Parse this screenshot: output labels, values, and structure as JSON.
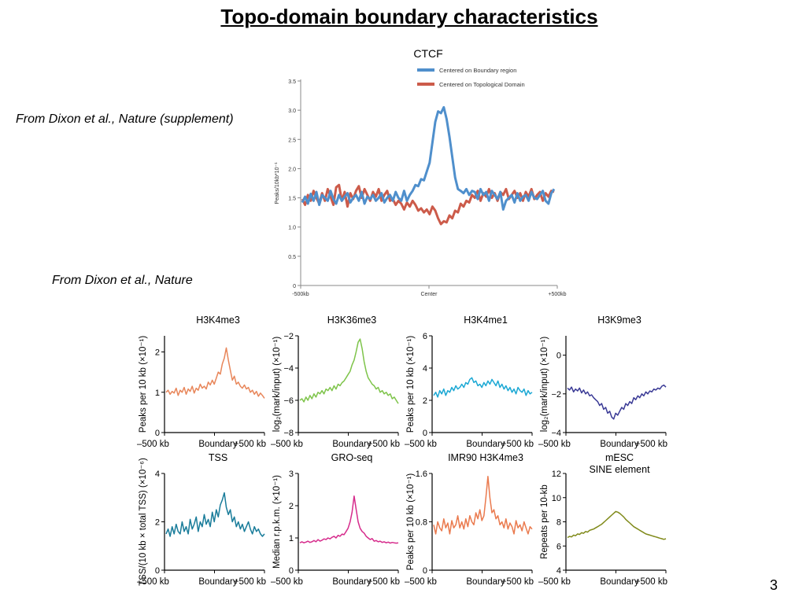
{
  "slide": {
    "title": "Topo-domain boundary characteristics",
    "caption_top": "From Dixon et al., Nature (supplement)",
    "caption_bottom": "From Dixon et al., Nature",
    "slide_number": "3"
  },
  "chart_data": [
    {
      "id": "ctcf",
      "type": "line",
      "title": "CTCF",
      "ylabel": "Peaks/10kb*10⁻¹",
      "ylim": [
        0,
        3.5
      ],
      "yticks": [
        0,
        0.5,
        1.0,
        1.5,
        2.0,
        2.5,
        3.0,
        3.5
      ],
      "ytick_labels": [
        "0",
        "0.5",
        "1.0",
        "1.5",
        "2.0",
        "2.5",
        "3.0",
        "3.5"
      ],
      "xtick_labels": [
        "-500kb",
        "Center",
        "+500kb"
      ],
      "legend_position": "top-right",
      "series": [
        {
          "name": "Centered on Boundary region",
          "color": "#4f8fcc",
          "values": [
            1.42,
            1.52,
            1.4,
            1.57,
            1.45,
            1.6,
            1.38,
            1.55,
            1.5,
            1.45,
            1.62,
            1.48,
            1.4,
            1.55,
            1.45,
            1.52,
            1.58,
            1.42,
            1.5,
            1.55,
            1.45,
            1.6,
            1.4,
            1.52,
            1.48,
            1.55,
            1.45,
            1.5,
            1.58,
            1.42,
            1.5,
            1.55,
            1.45,
            1.6,
            1.5,
            1.45,
            1.62,
            1.45,
            1.55,
            1.62,
            1.72,
            1.7,
            1.82,
            1.8,
            1.95,
            2.1,
            2.45,
            2.8,
            2.98,
            2.95,
            3.05,
            2.85,
            2.55,
            2.2,
            1.85,
            1.65,
            1.62,
            1.58,
            1.65,
            1.55,
            1.62,
            1.6,
            1.48,
            1.65,
            1.55,
            1.6,
            1.45,
            1.62,
            1.55,
            1.48,
            1.6,
            1.3,
            1.45,
            1.5,
            1.55,
            1.42,
            1.58,
            1.45,
            1.52,
            1.55,
            1.45,
            1.6,
            1.5,
            1.48,
            1.55,
            1.62,
            1.45,
            1.4,
            1.58,
            1.65
          ]
        },
        {
          "name": "Centered on Topological Domain",
          "color": "#cc5b4a",
          "values": [
            1.48,
            1.38,
            1.55,
            1.45,
            1.62,
            1.5,
            1.4,
            1.58,
            1.45,
            1.65,
            1.52,
            1.38,
            1.68,
            1.72,
            1.45,
            1.6,
            1.35,
            1.58,
            1.48,
            1.62,
            1.7,
            1.5,
            1.65,
            1.55,
            1.45,
            1.6,
            1.52,
            1.65,
            1.45,
            1.55,
            1.62,
            1.45,
            1.48,
            1.38,
            1.45,
            1.4,
            1.3,
            1.42,
            1.35,
            1.45,
            1.38,
            1.28,
            1.32,
            1.25,
            1.3,
            1.22,
            1.35,
            1.28,
            1.15,
            1.05,
            1.1,
            1.08,
            1.2,
            1.15,
            1.28,
            1.25,
            1.4,
            1.35,
            1.45,
            1.42,
            1.55,
            1.5,
            1.62,
            1.45,
            1.58,
            1.52,
            1.65,
            1.5,
            1.58,
            1.45,
            1.6,
            1.55,
            1.65,
            1.48,
            1.55,
            1.62,
            1.5,
            1.58,
            1.45,
            1.6,
            1.52,
            1.65,
            1.48,
            1.55,
            1.6,
            1.45,
            1.58,
            1.52,
            1.62,
            1.6
          ]
        }
      ]
    },
    {
      "id": "h3k4me3",
      "type": "line",
      "title": "H3K4me3",
      "ylabel": "Peaks per 10 kb (×10⁻¹)",
      "ylim": [
        0,
        2.4
      ],
      "yticks": [
        0,
        1,
        2
      ],
      "ytick_labels": [
        "0",
        "1",
        "2"
      ],
      "xtick_labels": [
        "–500 kb",
        "Boundary",
        "+500 kb"
      ],
      "color": "#e8865a",
      "series": [
        {
          "values": [
            1.0,
            1.05,
            0.95,
            1.02,
            0.98,
            1.1,
            0.92,
            1.05,
            1.0,
            1.12,
            0.95,
            1.08,
            1.02,
            1.15,
            0.98,
            1.1,
            1.05,
            1.2,
            1.1,
            1.15,
            1.08,
            1.25,
            1.18,
            1.3,
            1.2,
            1.35,
            1.5,
            1.45,
            1.7,
            1.85,
            2.1,
            1.8,
            1.55,
            1.3,
            1.4,
            1.2,
            1.25,
            1.15,
            1.1,
            1.18,
            1.08,
            1.12,
            1.0,
            1.05,
            0.95,
            1.02,
            0.9,
            0.98,
            0.92,
            0.85
          ]
        }
      ]
    },
    {
      "id": "h3k36me3",
      "type": "line",
      "title": "H3K36me3",
      "ylabel": "log₂(mark/input) (×10⁻¹)",
      "ylim": [
        -8,
        -2
      ],
      "yticks": [
        -8,
        -6,
        -4,
        -2
      ],
      "ytick_labels": [
        "−8",
        "−6",
        "−4",
        "−2"
      ],
      "xtick_labels": [
        "–500 kb",
        "Boundary",
        "+500 kb"
      ],
      "color": "#7ec44a",
      "series": [
        {
          "values": [
            -6.0,
            -5.9,
            -6.1,
            -5.8,
            -6.0,
            -5.7,
            -5.9,
            -5.6,
            -5.8,
            -5.5,
            -5.6,
            -5.4,
            -5.6,
            -5.3,
            -5.4,
            -5.2,
            -5.4,
            -5.1,
            -5.3,
            -5.0,
            -5.1,
            -4.9,
            -4.8,
            -4.6,
            -4.4,
            -4.2,
            -3.8,
            -3.5,
            -3.0,
            -2.4,
            -2.2,
            -2.8,
            -3.6,
            -4.2,
            -4.6,
            -4.8,
            -5.0,
            -5.1,
            -5.3,
            -5.2,
            -5.5,
            -5.4,
            -5.6,
            -5.5,
            -5.7,
            -5.6,
            -5.9,
            -5.8,
            -6.0,
            -6.2
          ]
        }
      ]
    },
    {
      "id": "h3k4me1",
      "type": "line",
      "title": "H3K4me1",
      "ylabel": "Peaks per 10 kb (×10⁻¹)",
      "ylim": [
        0,
        6
      ],
      "yticks": [
        0,
        2,
        4,
        6
      ],
      "ytick_labels": [
        "0",
        "2",
        "4",
        "6"
      ],
      "xtick_labels": [
        "–500 kb",
        "Boundary",
        "+500 kb"
      ],
      "color": "#1ba8d4",
      "series": [
        {
          "values": [
            2.3,
            2.5,
            2.2,
            2.6,
            2.4,
            2.7,
            2.3,
            2.6,
            2.5,
            2.8,
            2.6,
            2.9,
            2.7,
            2.8,
            3.0,
            2.8,
            3.1,
            3.0,
            3.3,
            3.4,
            3.1,
            3.2,
            2.9,
            3.0,
            2.8,
            3.1,
            2.9,
            3.2,
            3.0,
            3.3,
            3.1,
            2.9,
            3.2,
            2.8,
            3.0,
            2.7,
            2.9,
            2.6,
            2.8,
            2.5,
            2.7,
            2.4,
            2.8,
            2.6,
            2.5,
            2.7,
            2.3,
            2.6,
            2.4,
            2.5
          ]
        }
      ]
    },
    {
      "id": "h3k9me3",
      "type": "line",
      "title": "H3K9me3",
      "ylabel": "log₂(mark/input) (×10⁻¹)",
      "ylim": [
        -4,
        1
      ],
      "yticks": [
        -4,
        -2,
        0
      ],
      "ytick_labels": [
        "−4",
        "−2",
        "0"
      ],
      "xtick_labels": [
        "–500 kb",
        "Boundary",
        "+500 kb"
      ],
      "color": "#3b3b96",
      "series": [
        {
          "values": [
            -1.7,
            -1.8,
            -1.65,
            -1.9,
            -1.75,
            -1.85,
            -1.7,
            -1.95,
            -1.8,
            -2.0,
            -1.9,
            -2.1,
            -2.05,
            -2.2,
            -2.3,
            -2.4,
            -2.6,
            -2.5,
            -2.8,
            -2.7,
            -3.0,
            -2.9,
            -3.2,
            -3.3,
            -3.0,
            -3.1,
            -2.9,
            -2.7,
            -2.8,
            -2.5,
            -2.6,
            -2.4,
            -2.5,
            -2.2,
            -2.3,
            -2.1,
            -2.2,
            -2.0,
            -2.1,
            -1.9,
            -2.0,
            -1.85,
            -1.9,
            -1.75,
            -1.8,
            -1.7,
            -1.75,
            -1.6,
            -1.55,
            -1.65
          ]
        }
      ]
    },
    {
      "id": "tss",
      "type": "line",
      "title": "TSS",
      "ylabel": "TSS/(10 kb × total TSS) (×10⁻⁶)",
      "ylim": [
        0,
        4
      ],
      "yticks": [
        0,
        2,
        4
      ],
      "ytick_labels": [
        "0",
        "2",
        "4"
      ],
      "xtick_labels": [
        "–500 kb",
        "Boundary",
        "+500 kb"
      ],
      "color": "#197c9a",
      "series": [
        {
          "values": [
            1.5,
            1.7,
            1.4,
            1.8,
            1.5,
            1.9,
            1.6,
            1.5,
            2.0,
            1.6,
            1.8,
            1.5,
            2.1,
            1.7,
            1.9,
            2.2,
            1.6,
            2.0,
            1.8,
            2.3,
            1.9,
            2.1,
            1.8,
            2.4,
            2.0,
            2.5,
            2.2,
            2.7,
            2.9,
            3.2,
            2.6,
            2.3,
            2.5,
            2.0,
            2.2,
            1.8,
            2.0,
            1.7,
            1.9,
            1.6,
            1.8,
            2.0,
            1.7,
            1.5,
            1.8,
            1.6,
            1.7,
            1.5,
            1.4,
            1.5
          ]
        }
      ]
    },
    {
      "id": "groseq",
      "type": "line",
      "title": "GRO-seq",
      "ylabel": "Median r.p.k.m. (×10⁻¹)",
      "ylim": [
        0,
        3
      ],
      "yticks": [
        0,
        1,
        2,
        3
      ],
      "ytick_labels": [
        "0",
        "1",
        "2",
        "3"
      ],
      "xtick_labels": [
        "–500 kb",
        "Boundary",
        "+500 kb"
      ],
      "color": "#d62c8c",
      "series": [
        {
          "values": [
            0.85,
            0.88,
            0.85,
            0.87,
            0.9,
            0.86,
            0.88,
            0.92,
            0.88,
            0.95,
            0.9,
            0.93,
            0.97,
            0.95,
            1.0,
            0.97,
            1.02,
            1.05,
            1.0,
            1.08,
            1.05,
            1.12,
            1.1,
            1.2,
            1.3,
            1.5,
            1.8,
            2.3,
            1.9,
            1.5,
            1.3,
            1.2,
            1.15,
            1.05,
            1.0,
            0.95,
            0.98,
            0.9,
            0.92,
            0.88,
            0.9,
            0.86,
            0.88,
            0.85,
            0.87,
            0.84,
            0.86,
            0.85,
            0.84,
            0.85
          ]
        }
      ]
    },
    {
      "id": "imr90",
      "type": "line",
      "title": "IMR90 H3K4me3",
      "ylabel": "Peaks per 10 kb (×10⁻¹)",
      "ylim": [
        0,
        1.6
      ],
      "yticks": [
        0,
        0.8,
        1.6
      ],
      "ytick_labels": [
        "0",
        "0.8",
        "1.6"
      ],
      "xtick_labels": [
        "–500 kb",
        "Boundary",
        "+500 kb"
      ],
      "color": "#ea7a4e",
      "series": [
        {
          "values": [
            0.75,
            0.6,
            0.8,
            0.7,
            0.65,
            0.85,
            0.7,
            0.78,
            0.6,
            0.82,
            0.7,
            0.75,
            0.9,
            0.7,
            0.8,
            0.68,
            0.85,
            0.72,
            0.9,
            0.8,
            0.75,
            0.95,
            0.85,
            1.0,
            0.82,
            0.9,
            1.2,
            1.55,
            1.2,
            0.95,
            1.0,
            0.85,
            0.9,
            0.75,
            0.8,
            0.7,
            0.85,
            0.68,
            0.78,
            0.72,
            0.6,
            0.82,
            0.7,
            0.75,
            0.65,
            0.8,
            0.7,
            0.6,
            0.72,
            0.68
          ]
        }
      ]
    },
    {
      "id": "sine",
      "type": "line",
      "title": "mESC SINE element",
      "title_lines": [
        "mESC",
        "SINE element"
      ],
      "ylabel": "Repeats per 10-kb",
      "ylim": [
        4,
        12
      ],
      "yticks": [
        4,
        6,
        8,
        10,
        12
      ],
      "ytick_labels": [
        "4",
        "6",
        "8",
        "10",
        "12"
      ],
      "xtick_labels": [
        "–500 kb",
        "Boundary",
        "+500 kb"
      ],
      "color": "#808a1a",
      "series": [
        {
          "values": [
            6.7,
            6.8,
            6.75,
            6.9,
            6.85,
            7.0,
            6.95,
            7.1,
            7.05,
            7.2,
            7.15,
            7.3,
            7.35,
            7.4,
            7.5,
            7.6,
            7.7,
            7.8,
            7.95,
            8.1,
            8.25,
            8.4,
            8.55,
            8.7,
            8.85,
            8.8,
            8.7,
            8.55,
            8.4,
            8.2,
            8.05,
            7.9,
            7.75,
            7.6,
            7.5,
            7.4,
            7.3,
            7.2,
            7.1,
            7.0,
            6.95,
            6.9,
            6.85,
            6.8,
            6.75,
            6.7,
            6.65,
            6.6,
            6.55,
            6.6
          ]
        }
      ]
    }
  ]
}
